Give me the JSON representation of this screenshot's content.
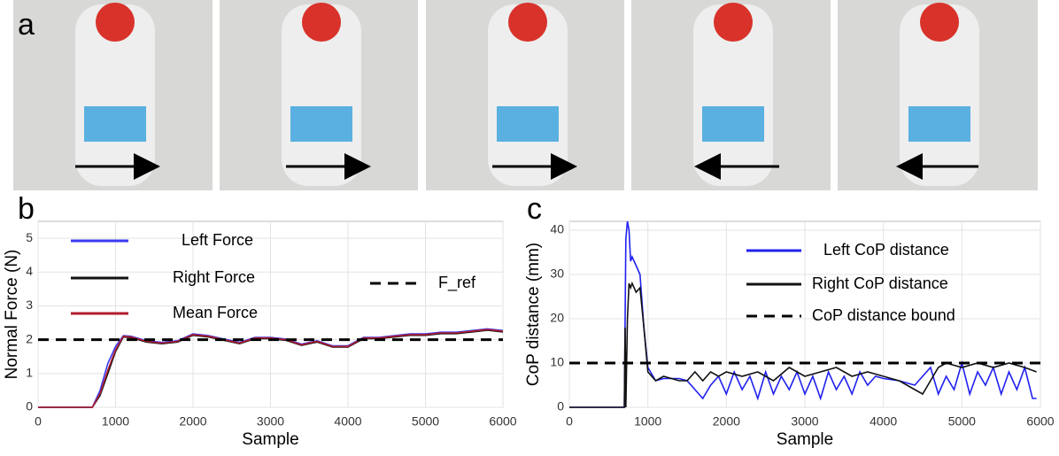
{
  "photo_panel": {
    "label": "a"
  },
  "chart_data": [
    {
      "type": "line",
      "panel_label": "b",
      "xlabel": "Sample",
      "ylabel": "Normal Force (N)",
      "xlim": [
        0,
        6000
      ],
      "ylim": [
        0,
        5.5
      ],
      "xticks": [
        0,
        1000,
        2000,
        3000,
        4000,
        5000,
        6000
      ],
      "yticks": [
        0,
        1,
        2,
        3,
        4,
        5
      ],
      "grid": true,
      "x": [
        0,
        700,
        800,
        900,
        1000,
        1100,
        1200,
        1400,
        1600,
        1800,
        2000,
        2200,
        2400,
        2600,
        2800,
        3000,
        3200,
        3400,
        3600,
        3800,
        4000,
        4200,
        4400,
        4600,
        4800,
        5000,
        5200,
        5400,
        5600,
        5800,
        6000
      ],
      "series": [
        {
          "name": "Left Force",
          "color": "#3a3af0",
          "values": [
            0,
            0,
            0.5,
            1.3,
            1.8,
            2.12,
            2.1,
            1.97,
            1.92,
            1.97,
            2.17,
            2.12,
            2.02,
            1.92,
            2.07,
            2.07,
            2.02,
            1.87,
            1.97,
            1.82,
            1.82,
            2.07,
            2.07,
            2.12,
            2.17,
            2.17,
            2.22,
            2.22,
            2.27,
            2.32,
            2.27
          ]
        },
        {
          "name": "Right Force",
          "color": "#111111",
          "values": [
            0,
            0,
            0.35,
            1.0,
            1.65,
            2.08,
            2.06,
            1.93,
            1.88,
            1.93,
            2.13,
            2.08,
            1.98,
            1.88,
            2.03,
            2.03,
            1.98,
            1.83,
            1.93,
            1.78,
            1.78,
            2.03,
            2.03,
            2.08,
            2.13,
            2.13,
            2.18,
            2.18,
            2.23,
            2.28,
            2.23
          ]
        },
        {
          "name": "Mean Force",
          "color": "#b01c2e",
          "values": [
            0,
            0,
            0.4,
            1.1,
            1.7,
            2.1,
            2.08,
            1.95,
            1.9,
            1.95,
            2.15,
            2.1,
            2.0,
            1.9,
            2.05,
            2.05,
            2.0,
            1.85,
            1.95,
            1.8,
            1.8,
            2.05,
            2.05,
            2.1,
            2.15,
            2.15,
            2.2,
            2.2,
            2.25,
            2.3,
            2.25
          ]
        },
        {
          "name": "F_ref",
          "color": "#000000",
          "dashed": true,
          "x": [
            0,
            6000
          ],
          "values": [
            2,
            2
          ]
        }
      ]
    },
    {
      "type": "line",
      "panel_label": "c",
      "xlabel": "Sample",
      "ylabel": "CoP distance (mm)",
      "xlim": [
        0,
        6000
      ],
      "ylim": [
        0,
        42
      ],
      "xticks": [
        0,
        1000,
        2000,
        3000,
        4000,
        5000,
        6000
      ],
      "yticks": [
        0,
        10,
        20,
        30,
        40
      ],
      "grid": true,
      "series": [
        {
          "name": "Left CoP distance",
          "color": "#2020f0",
          "x": [
            0,
            700,
            720,
            740,
            760,
            780,
            800,
            850,
            900,
            950,
            1000,
            1100,
            1200,
            1400,
            1500,
            1600,
            1700,
            1800,
            1900,
            2000,
            2100,
            2200,
            2300,
            2400,
            2500,
            2600,
            2700,
            2800,
            2900,
            3000,
            3100,
            3200,
            3300,
            3400,
            3500,
            3600,
            3700,
            3800,
            3900,
            4000,
            4200,
            4400,
            4600,
            4700,
            4800,
            4900,
            5000,
            5100,
            5200,
            5300,
            5400,
            5500,
            5600,
            5700,
            5800,
            5900,
            5950
          ],
          "values": [
            0,
            0,
            38,
            42,
            40,
            33,
            34,
            32,
            30,
            18,
            9,
            6,
            6.5,
            6.5,
            6,
            4,
            2,
            5,
            7,
            3,
            8,
            4,
            7,
            2,
            8,
            3,
            7,
            4,
            8,
            3,
            7,
            2,
            8,
            4,
            7,
            3,
            8,
            5,
            7,
            6.5,
            6,
            5,
            9,
            3,
            7,
            4,
            10,
            3,
            8,
            5,
            9,
            3,
            8,
            4,
            9,
            2,
            2
          ]
        },
        {
          "name": "Right CoP distance",
          "color": "#111111",
          "x": [
            0,
            700,
            710,
            720,
            740,
            760,
            780,
            800,
            850,
            900,
            950,
            1000,
            1100,
            1200,
            1400,
            1500,
            1600,
            1700,
            1800,
            1900,
            2000,
            2200,
            2400,
            2600,
            2800,
            3000,
            3200,
            3400,
            3600,
            3800,
            4000,
            4200,
            4400,
            4500,
            4600,
            4700,
            4800,
            5000,
            5200,
            5400,
            5600,
            5800,
            5950
          ],
          "values": [
            0,
            0,
            18,
            0,
            20,
            28,
            27,
            28,
            26,
            27,
            18,
            8,
            6,
            7,
            6,
            6,
            8,
            6,
            8,
            7,
            8,
            7,
            8,
            6,
            9,
            7,
            8,
            9,
            7,
            8,
            7,
            6,
            4,
            3,
            6,
            9,
            10,
            9,
            10,
            9,
            10,
            9,
            8
          ]
        },
        {
          "name": "CoP distance bound",
          "color": "#000000",
          "dashed": true,
          "x": [
            0,
            6000
          ],
          "values": [
            10,
            10
          ]
        }
      ]
    }
  ]
}
